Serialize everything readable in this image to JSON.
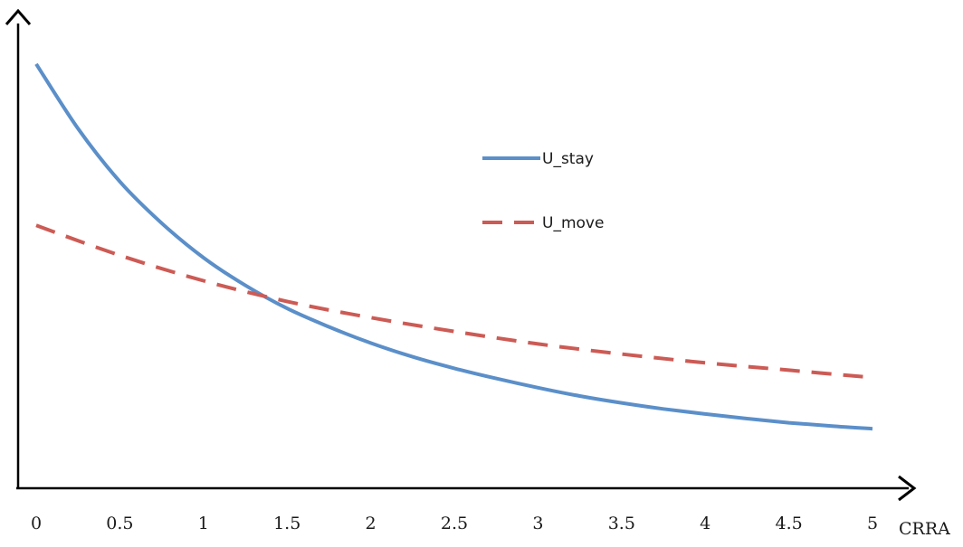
{
  "chart_data": {
    "type": "line",
    "xlabel": "CRRA",
    "ylabel": "",
    "x_ticks": [
      "0",
      "0.5",
      "1",
      "1.5",
      "2",
      "2.5",
      "3",
      "3.5",
      "4",
      "4.5",
      "5"
    ],
    "xlim": [
      0,
      5
    ],
    "ylim": [
      0,
      1
    ],
    "grid": false,
    "legend_position": "center-right",
    "series": [
      {
        "name": "U_stay",
        "style": "solid",
        "color": "#5b8fc9",
        "x": [
          0,
          0.25,
          0.5,
          0.75,
          1,
          1.25,
          1.5,
          1.75,
          2,
          2.25,
          2.5,
          2.75,
          3,
          3.25,
          3.5,
          3.75,
          4,
          4.25,
          4.5,
          4.75,
          5
        ],
        "y": [
          0.92,
          0.78,
          0.665,
          0.575,
          0.5,
          0.44,
          0.39,
          0.35,
          0.315,
          0.285,
          0.26,
          0.238,
          0.218,
          0.2,
          0.185,
          0.172,
          0.161,
          0.151,
          0.142,
          0.135,
          0.129
        ]
      },
      {
        "name": "U_move",
        "style": "dashed",
        "color": "#cc5b55",
        "x": [
          0,
          0.5,
          1,
          1.5,
          2,
          2.5,
          3,
          3.5,
          4,
          4.5,
          5
        ],
        "y": [
          0.57,
          0.505,
          0.45,
          0.405,
          0.37,
          0.34,
          0.313,
          0.291,
          0.272,
          0.256,
          0.24
        ]
      }
    ]
  }
}
